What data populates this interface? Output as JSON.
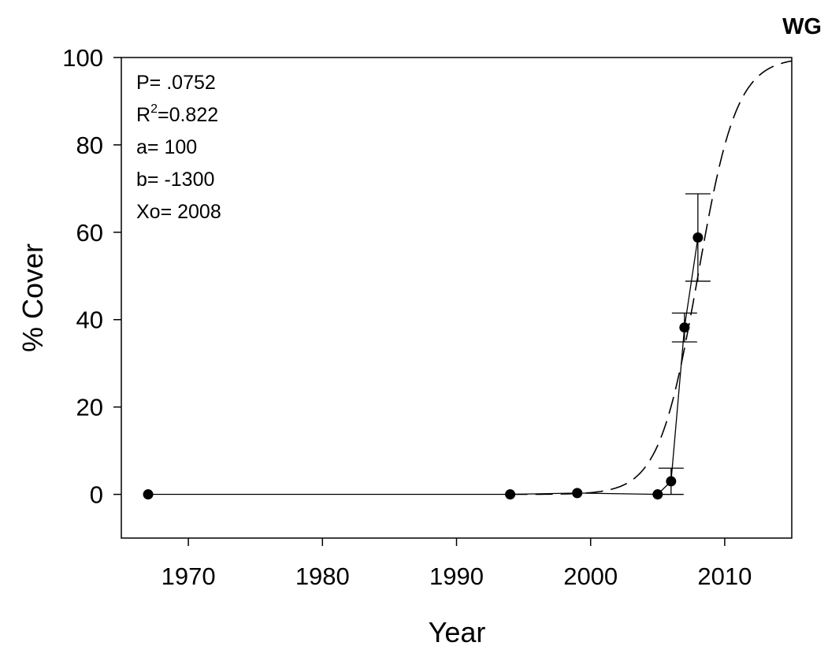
{
  "chart_data": {
    "type": "scatter",
    "panel_label": "WG",
    "xlabel": "Year",
    "ylabel": "% Cover",
    "xlim": [
      1965,
      2015
    ],
    "ylim": [
      -10,
      100
    ],
    "x_ticks": [
      1970,
      1980,
      1990,
      2000,
      2010
    ],
    "y_ticks": [
      0,
      20,
      40,
      60,
      80,
      100
    ],
    "grid": false,
    "points": [
      {
        "x": 1967,
        "y": 0
      },
      {
        "x": 1994,
        "y": 0
      },
      {
        "x": 1999,
        "y": 0.3
      },
      {
        "x": 2005,
        "y": 0
      },
      {
        "x": 2006,
        "y": 3,
        "err": 3
      },
      {
        "x": 2007,
        "y": 38.2,
        "err": 3.3
      },
      {
        "x": 2008,
        "y": 58.8,
        "err": 10
      }
    ],
    "fit": {
      "model": "sigmoid",
      "a": 100,
      "b": -1300,
      "x0": 2008,
      "style": "dashed",
      "x_start": 1994
    },
    "stats": {
      "p_label": "P= .0752",
      "r2_prefix": "R",
      "r2_sup": "2",
      "r2_value": "=0.822",
      "a_label": "a= 100",
      "b_label": "b= -1300",
      "xo_label": "Xo= 2008"
    }
  }
}
